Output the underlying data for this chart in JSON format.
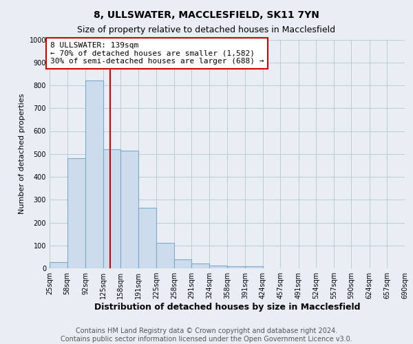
{
  "title": "8, ULLSWATER, MACCLESFIELD, SK11 7YN",
  "subtitle": "Size of property relative to detached houses in Macclesfield",
  "xlabel": "Distribution of detached houses by size in Macclesfield",
  "ylabel": "Number of detached properties",
  "footer_line1": "Contains HM Land Registry data © Crown copyright and database right 2024.",
  "footer_line2": "Contains public sector information licensed under the Open Government Licence v3.0.",
  "bar_edges": [
    25,
    58,
    92,
    125,
    158,
    191,
    225,
    258,
    291,
    324,
    358,
    391,
    424,
    457,
    491,
    524,
    557,
    590,
    624,
    657,
    690
  ],
  "bar_values": [
    28,
    480,
    820,
    520,
    515,
    265,
    110,
    38,
    22,
    12,
    8,
    8,
    0,
    0,
    0,
    0,
    0,
    0,
    0,
    0
  ],
  "bar_color": "#ccdcec",
  "bar_edge_color": "#7aaaca",
  "bar_edge_width": 0.8,
  "property_size": 139,
  "vline_color": "#cc0000",
  "annotation_line1": "8 ULLSWATER: 139sqm",
  "annotation_line2": "← 70% of detached houses are smaller (1,582)",
  "annotation_line3": "30% of semi-detached houses are larger (688) →",
  "annotation_box_color": "white",
  "annotation_box_edge_color": "#cc0000",
  "ylim": [
    0,
    1000
  ],
  "yticks": [
    0,
    100,
    200,
    300,
    400,
    500,
    600,
    700,
    800,
    900,
    1000
  ],
  "grid_color": "#c0c8d0",
  "bg_color": "#e8eef4",
  "title_fontsize": 10,
  "subtitle_fontsize": 9,
  "xlabel_fontsize": 9,
  "ylabel_fontsize": 8,
  "tick_fontsize": 7,
  "footer_fontsize": 7,
  "annotation_fontsize": 8
}
